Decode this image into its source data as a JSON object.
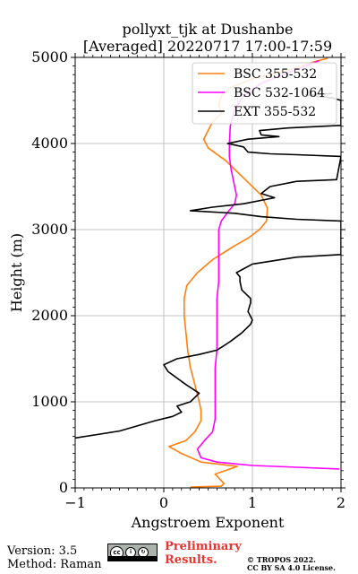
{
  "chart_data": {
    "type": "line",
    "title": "pollyxt_tjk at Dushanbe",
    "subtitle": "[Averaged] 20220717 17:00-17:59",
    "xlabel": "Angstroem Exponent",
    "ylabel": "Height (m)",
    "xlim": [
      -1,
      2
    ],
    "ylim": [
      0,
      5000
    ],
    "xticks": [
      "−1",
      "0",
      "1",
      "2"
    ],
    "yticks": [
      "0",
      "1000",
      "2000",
      "3000",
      "4000",
      "5000"
    ],
    "grid": true,
    "legend_position": "top-right",
    "series": [
      {
        "name": "BSC 355-532",
        "color": "#ff7f0e",
        "points": [
          [
            0.3,
            10
          ],
          [
            0.65,
            20
          ],
          [
            0.68,
            50
          ],
          [
            0.58,
            160
          ],
          [
            0.83,
            250
          ],
          [
            0.42,
            300
          ],
          [
            0.2,
            400
          ],
          [
            0.06,
            480
          ],
          [
            0.25,
            550
          ],
          [
            0.35,
            650
          ],
          [
            0.42,
            780
          ],
          [
            0.42,
            900
          ],
          [
            0.4,
            1000
          ],
          [
            0.35,
            1200
          ],
          [
            0.3,
            1400
          ],
          [
            0.27,
            1600
          ],
          [
            0.25,
            1800
          ],
          [
            0.23,
            2000
          ],
          [
            0.23,
            2200
          ],
          [
            0.26,
            2350
          ],
          [
            0.38,
            2500
          ],
          [
            0.55,
            2650
          ],
          [
            0.78,
            2800
          ],
          [
            0.95,
            2900
          ],
          [
            1.08,
            3000
          ],
          [
            1.16,
            3100
          ],
          [
            1.17,
            3250
          ],
          [
            1.1,
            3400
          ],
          [
            0.9,
            3600
          ],
          [
            0.7,
            3800
          ],
          [
            0.5,
            3950
          ],
          [
            0.45,
            4050
          ],
          [
            0.5,
            4150
          ],
          [
            0.55,
            4250
          ],
          [
            0.65,
            4350
          ],
          [
            0.62,
            4450
          ],
          [
            0.65,
            4550
          ],
          [
            0.75,
            4650
          ],
          [
            1.0,
            4750
          ],
          [
            1.4,
            4850
          ],
          [
            1.7,
            4950
          ],
          [
            1.85,
            4990
          ]
        ]
      },
      {
        "name": "BSC 532-1064",
        "color": "#ff00ff",
        "points": [
          [
            1.98,
            220
          ],
          [
            1.5,
            240
          ],
          [
            1.0,
            260
          ],
          [
            0.6,
            300
          ],
          [
            0.42,
            350
          ],
          [
            0.38,
            450
          ],
          [
            0.46,
            550
          ],
          [
            0.55,
            650
          ],
          [
            0.58,
            800
          ],
          [
            0.58,
            1000
          ],
          [
            0.58,
            1200
          ],
          [
            0.58,
            1400
          ],
          [
            0.6,
            1600
          ],
          [
            0.6,
            1800
          ],
          [
            0.6,
            2000
          ],
          [
            0.6,
            2200
          ],
          [
            0.62,
            2400
          ],
          [
            0.62,
            2600
          ],
          [
            0.62,
            2800
          ],
          [
            0.62,
            3000
          ],
          [
            0.65,
            3100
          ],
          [
            0.72,
            3200
          ],
          [
            0.8,
            3300
          ],
          [
            0.82,
            3400
          ],
          [
            0.8,
            3500
          ],
          [
            0.76,
            3700
          ],
          [
            0.74,
            3850
          ],
          [
            0.74,
            4000
          ],
          [
            0.75,
            4200
          ],
          [
            0.8,
            4400
          ],
          [
            0.9,
            4550
          ],
          [
            1.1,
            4700
          ],
          [
            1.35,
            4800
          ],
          [
            1.6,
            4900
          ],
          [
            1.75,
            4960
          ]
        ]
      },
      {
        "name": "EXT 355-532",
        "color": "#000000",
        "points": [
          [
            -1.0,
            580
          ],
          [
            -0.75,
            620
          ],
          [
            -0.5,
            660
          ],
          [
            -0.3,
            720
          ],
          [
            -0.1,
            780
          ],
          [
            0.1,
            830
          ],
          [
            0.2,
            880
          ],
          [
            0.15,
            950
          ],
          [
            0.3,
            1000
          ],
          [
            0.4,
            1100
          ],
          [
            0.25,
            1200
          ],
          [
            0.05,
            1350
          ],
          [
            0.0,
            1430
          ],
          [
            0.15,
            1500
          ],
          [
            0.4,
            1550
          ],
          [
            0.6,
            1600
          ],
          [
            0.75,
            1700
          ],
          [
            0.88,
            1800
          ],
          [
            0.98,
            1900
          ],
          [
            1.0,
            1950
          ],
          [
            0.95,
            2050
          ],
          [
            0.98,
            2150
          ],
          [
            0.98,
            2200
          ],
          [
            0.88,
            2300
          ],
          [
            0.86,
            2400
          ],
          [
            0.86,
            2450
          ],
          [
            0.82,
            2500
          ],
          [
            1.0,
            2600
          ],
          [
            1.5,
            2680
          ],
          [
            2.0,
            2710
          ],
          [
            2.0,
            3100
          ],
          [
            1.5,
            3120
          ],
          [
            1.1,
            3150
          ],
          [
            0.8,
            3190
          ],
          [
            0.45,
            3210
          ],
          [
            0.3,
            3220
          ],
          [
            0.55,
            3260
          ],
          [
            0.9,
            3300
          ],
          [
            1.25,
            3370
          ],
          [
            1.1,
            3420
          ],
          [
            1.2,
            3500
          ],
          [
            1.5,
            3560
          ],
          [
            1.95,
            3580
          ],
          [
            2.0,
            3850
          ],
          [
            1.5,
            3870
          ],
          [
            1.2,
            3880
          ],
          [
            0.95,
            3900
          ],
          [
            0.9,
            3960
          ],
          [
            0.72,
            4000
          ],
          [
            0.95,
            4050
          ],
          [
            1.3,
            4080
          ],
          [
            1.1,
            4100
          ],
          [
            1.08,
            4150
          ],
          [
            1.4,
            4180
          ],
          [
            2.0,
            4210
          ],
          [
            2.0,
            4500
          ],
          [
            1.9,
            4530
          ],
          [
            1.6,
            4560
          ],
          [
            1.9,
            4580
          ]
        ]
      }
    ]
  },
  "footer": {
    "version": "Version: 3.5",
    "method": "Method: Raman",
    "preliminary_line1": "Preliminary",
    "preliminary_line2": "Results.",
    "copyright_line1": "© TROPOS 2022.",
    "copyright_line2": "CC BY SA 4.0 License."
  }
}
